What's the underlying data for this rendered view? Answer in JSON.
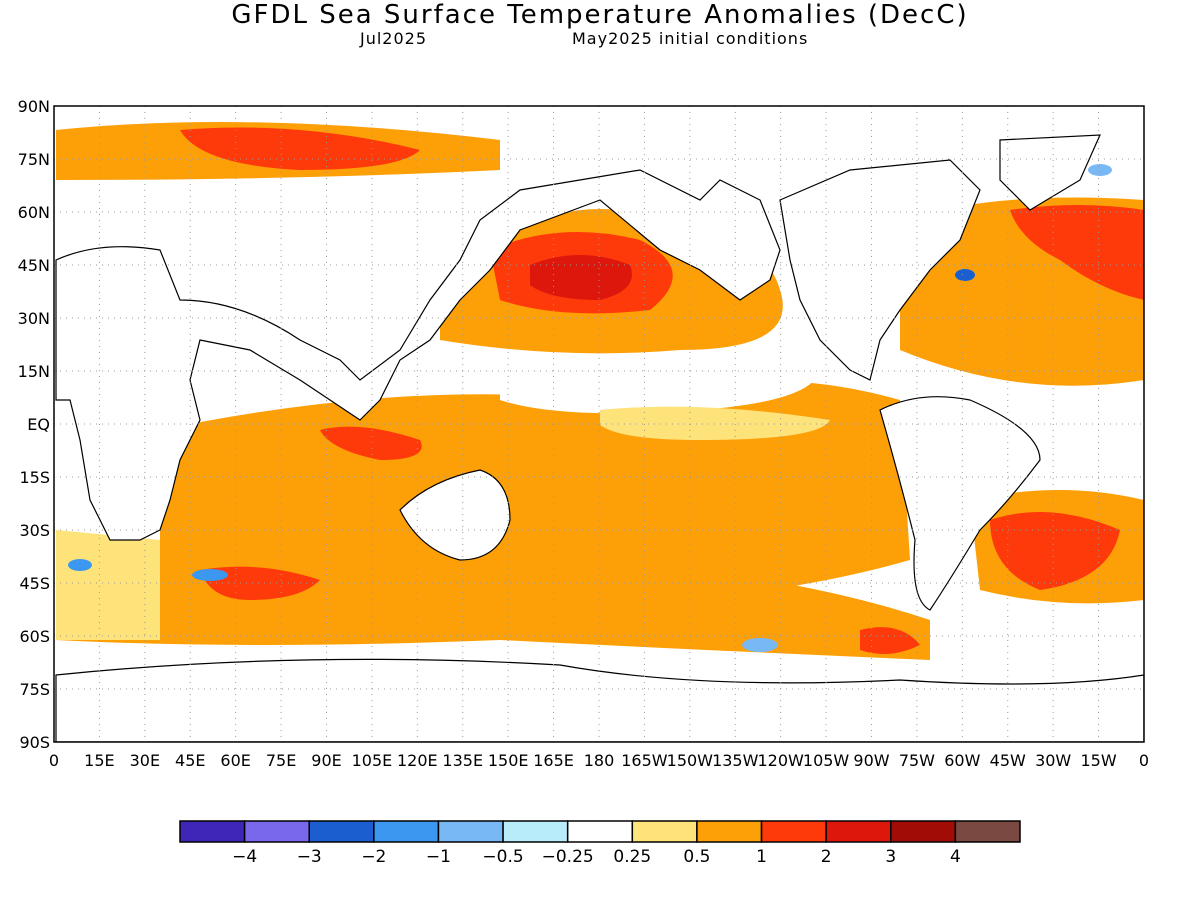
{
  "header": {
    "title": "GFDL Sea Surface Temperature Anomalies (DecC)",
    "forecast_month": "Jul2025",
    "initial_conditions": "May2025 initial conditions"
  },
  "map": {
    "lat_labels": [
      "90N",
      "75N",
      "60N",
      "45N",
      "30N",
      "15N",
      "EQ",
      "15S",
      "30S",
      "45S",
      "60S",
      "75S",
      "90S"
    ],
    "lon_labels": [
      "0",
      "15E",
      "30E",
      "45E",
      "60E",
      "75E",
      "90E",
      "105E",
      "120E",
      "135E",
      "150E",
      "165E",
      "180",
      "165W",
      "150W",
      "135W",
      "120W",
      "105W",
      "90W",
      "75W",
      "60W",
      "45W",
      "30W",
      "15W",
      "0"
    ],
    "lat_range": [
      -90,
      90
    ],
    "lon_range": [
      0,
      360
    ],
    "grid": true
  },
  "colorbar": {
    "colors": [
      "#3f26b8",
      "#7a68ec",
      "#1a5ed0",
      "#3b97f0",
      "#78b8f5",
      "#b8ecfa",
      "#ffffff",
      "#fee27a",
      "#fda007",
      "#fe3a0a",
      "#de170c",
      "#a10c06",
      "#7a4a42"
    ],
    "labels": [
      "−4",
      "−3",
      "−2",
      "−1",
      "−0.5",
      "−0.25",
      "0.25",
      "0.5",
      "1",
      "2",
      "3",
      "4"
    ]
  }
}
